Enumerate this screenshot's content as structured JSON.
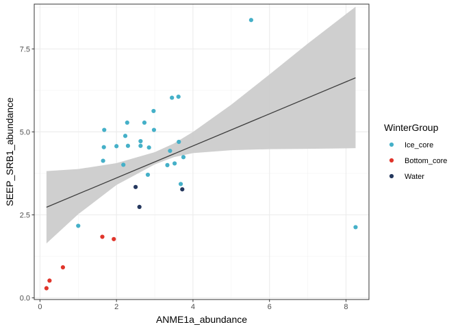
{
  "chart_data": {
    "type": "scatter",
    "xlabel": "ANME1a_abundance",
    "ylabel": "SEEP_SRB1_abundance",
    "xlim": [
      -0.15,
      8.6
    ],
    "ylim": [
      -0.05,
      8.85
    ],
    "x_ticks": [
      0,
      2,
      4,
      6,
      8
    ],
    "y_ticks": [
      0.0,
      2.5,
      5.0,
      7.5
    ],
    "x_tick_labels": [
      "0",
      "2",
      "4",
      "6",
      "8"
    ],
    "y_tick_labels": [
      "0.0",
      "2.5",
      "5.0",
      "7.5"
    ],
    "grid": true,
    "legend": {
      "title": "WinterGroup",
      "placement": "right",
      "entries": [
        "Ice_core",
        "Bottom_core",
        "Water"
      ]
    },
    "colors": {
      "Ice_core": "#45b0c8",
      "Bottom_core": "#e0352b",
      "Water": "#25385e",
      "fit_line": "#3d3d3d",
      "ribbon": "#cccccc"
    },
    "series": [
      {
        "name": "Ice_core",
        "points": [
          [
            5.52,
            8.37
          ],
          [
            3.45,
            6.03
          ],
          [
            3.62,
            6.06
          ],
          [
            2.97,
            5.63
          ],
          [
            2.28,
            5.28
          ],
          [
            2.73,
            5.28
          ],
          [
            1.68,
            5.06
          ],
          [
            2.98,
            5.06
          ],
          [
            2.23,
            4.88
          ],
          [
            2.63,
            4.72
          ],
          [
            3.63,
            4.7
          ],
          [
            2.0,
            4.57
          ],
          [
            2.3,
            4.58
          ],
          [
            2.63,
            4.58
          ],
          [
            1.67,
            4.54
          ],
          [
            2.85,
            4.53
          ],
          [
            3.4,
            4.43
          ],
          [
            3.75,
            4.24
          ],
          [
            1.65,
            4.13
          ],
          [
            3.52,
            4.05
          ],
          [
            2.18,
            4.01
          ],
          [
            3.33,
            4.0
          ],
          [
            2.82,
            3.71
          ],
          [
            3.68,
            3.43
          ],
          [
            1.0,
            2.17
          ],
          [
            8.25,
            2.13
          ]
        ]
      },
      {
        "name": "Bottom_core",
        "points": [
          [
            1.63,
            1.84
          ],
          [
            1.93,
            1.77
          ],
          [
            0.6,
            0.92
          ],
          [
            0.25,
            0.52
          ],
          [
            0.17,
            0.29
          ]
        ]
      },
      {
        "name": "Water",
        "points": [
          [
            2.5,
            3.34
          ],
          [
            3.72,
            3.27
          ],
          [
            2.6,
            2.74
          ]
        ]
      }
    ],
    "fit_line": {
      "x": [
        0.17,
        8.25
      ],
      "y": [
        2.73,
        6.63
      ]
    },
    "confidence_band": {
      "x": [
        0.17,
        1.0,
        2.0,
        3.0,
        3.5,
        4.0,
        5.0,
        6.0,
        7.0,
        8.25
      ],
      "lower": [
        1.64,
        2.52,
        3.4,
        4.02,
        4.24,
        4.36,
        4.45,
        4.48,
        4.49,
        4.51
      ],
      "upper": [
        3.82,
        3.88,
        4.06,
        4.39,
        4.65,
        5.0,
        5.82,
        6.73,
        7.66,
        8.77
      ]
    }
  }
}
